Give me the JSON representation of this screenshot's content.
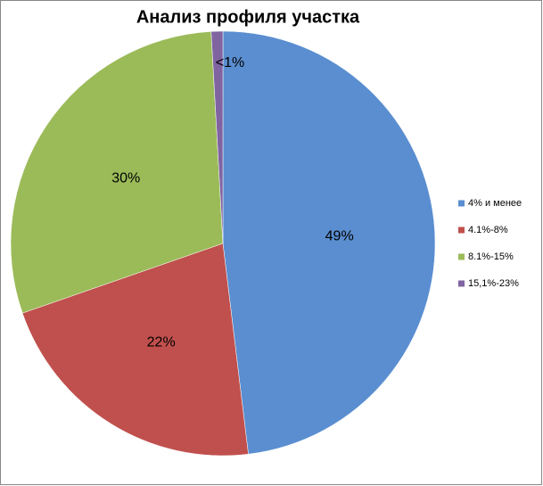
{
  "chart_data": {
    "type": "pie",
    "title": "Анализ профиля участка",
    "categories": [
      "4% и менее",
      "4.1%-8%",
      "8.1%-15%",
      "15,1%-23%"
    ],
    "values": [
      49,
      22,
      30,
      0.9
    ],
    "value_labels": [
      "49%",
      "22%",
      "30%",
      "<1%"
    ],
    "colors": [
      "#5a8ed0",
      "#c0504d",
      "#9bbb59",
      "#8064a2"
    ],
    "legend": "right"
  }
}
